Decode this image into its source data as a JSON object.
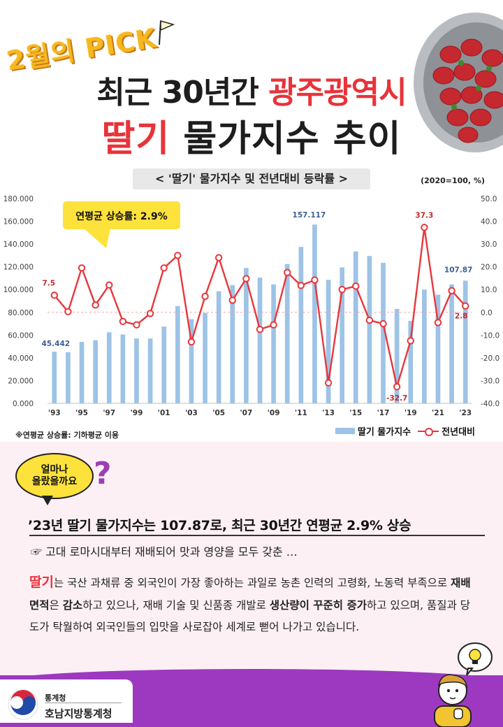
{
  "header": {
    "badge": "2월의 PICK",
    "title_line1_pre": "최근 30년간 ",
    "title_line1_accent": "광주광역시",
    "title_line2_accent": "딸기",
    "title_line2_post": " 물가지수 추이"
  },
  "chart_title": "< '딸기'  물가지수 및 전년대비 등락률 >",
  "unit_note": "(2020=100, %)",
  "callout": "연평균 상승률: 2.9%",
  "footnote": "※연평균 상승률: 기하평균 이용",
  "legend": {
    "bar": "딸기 물가지수",
    "line": "전년대비"
  },
  "chart_data": {
    "type": "bar+line",
    "years": [
      1993,
      1994,
      1995,
      1996,
      1997,
      1998,
      1999,
      2000,
      2001,
      2002,
      2003,
      2004,
      2005,
      2006,
      2007,
      2008,
      2009,
      2010,
      2011,
      2012,
      2013,
      2014,
      2015,
      2016,
      2017,
      2018,
      2019,
      2020,
      2021,
      2022,
      2023
    ],
    "x_tick_labels": [
      "'93",
      "'95",
      "'97",
      "'99",
      "'01",
      "'03",
      "'05",
      "'07",
      "'09",
      "'11",
      "'13",
      "'15",
      "'17",
      "'19",
      "'21",
      "'23"
    ],
    "y_left_ticks": [
      "0.000",
      "20.000",
      "40.000",
      "60.000",
      "80.000",
      "100.000",
      "120.000",
      "140.000",
      "160.000",
      "180.000"
    ],
    "y_right_ticks": [
      "-40.0",
      "-30.0",
      "-20.0",
      "-10.0",
      "0.0",
      "10.0",
      "20.0",
      "30.0",
      "40.0",
      "50.0"
    ],
    "ylim_left": [
      0,
      180
    ],
    "ylim_right": [
      -40,
      50
    ],
    "grid": false,
    "series": [
      {
        "name": "딸기 물가지수",
        "axis": "left",
        "color": "#9dc3e6",
        "values": [
          45.442,
          45.0,
          54.0,
          55.5,
          62.5,
          60.5,
          57.0,
          57.0,
          67.5,
          85.5,
          74.0,
          79.5,
          98.5,
          104.0,
          119.0,
          110.5,
          104.5,
          122.5,
          137.5,
          157.117,
          108.5,
          119.5,
          133.5,
          129.5,
          123.5,
          83.0,
          72.5,
          100.0,
          95.5,
          104.5,
          107.87
        ]
      },
      {
        "name": "전년대비",
        "axis": "right",
        "color": "#e8363b",
        "values": [
          7.5,
          0.3,
          19.5,
          3.2,
          12.0,
          -4.0,
          -5.5,
          -0.5,
          19.5,
          25.0,
          -13.0,
          7.0,
          24.0,
          5.3,
          14.8,
          -7.5,
          -5.5,
          17.5,
          11.8,
          14.2,
          -31.0,
          10.0,
          11.5,
          -3.5,
          -5.0,
          -32.7,
          -12.5,
          37.3,
          -4.5,
          9.5,
          2.8
        ]
      }
    ],
    "data_labels": [
      {
        "series": "딸기 물가지수",
        "text": "45.442"
      },
      {
        "series": "딸기 물가지수",
        "text": "157.117"
      },
      {
        "series": "딸기 물가지수",
        "text": "107.87"
      },
      {
        "series": "전년대비",
        "text": "7.5"
      },
      {
        "series": "전년대비",
        "text": "37.3"
      },
      {
        "series": "전년대비",
        "text": "-32.7"
      },
      {
        "series": "전년대비",
        "text": "2.8"
      }
    ]
  },
  "question_bubble": "얼마나\n올랐을까요",
  "question_mark": "?",
  "headline": "’23년 딸기 물가지수는 107.87로, 최근 30년간 연평균 2.9% 상승",
  "sub_line": "☞ 고대 로마시대부터 재배되어 맛과 영양을 모두 갖춘 …",
  "body": {
    "kw": "딸기",
    "t1": "는 국산 과채류 중 외국인이 가장 좋아하는 과일로 농촌 인력의 고령화, 노동력 부족으로 ",
    "b1": "재배 면적",
    "t2": "은 ",
    "b2": "감소",
    "t3": "하고 있으나, 재배 기술 및 신품종 개발로 ",
    "b3": "생산량이 꾸준히 증가",
    "t4": "하고 있으며, 품질과 당도가 탁월하여 외국인들의 입맛을 사로잡아 세계로 뻗어 나가고 있습니다."
  },
  "footer": {
    "org_small": "통계청",
    "org_large": "호남지방통계청"
  },
  "colors": {
    "accent_red": "#e8333a",
    "footer_purple": "#9c39c0",
    "bubble_yellow": "#fde23b",
    "pink_bg": "#fdf0f4"
  },
  "icons": [
    "flag-icon",
    "strawberry-bowl-image",
    "question-mark-icon",
    "lightbulb-icon",
    "character-illustration",
    "taegeuk-emblem"
  ]
}
